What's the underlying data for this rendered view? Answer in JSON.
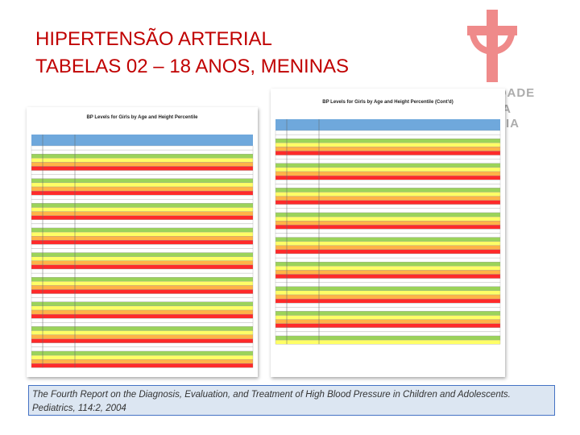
{
  "header": {
    "title_line1": "HIPERTENSÃO ARTERIAL",
    "title_line2": "TABELAS 02 – 18 ANOS, MENINAS"
  },
  "logo": {
    "lines": [
      "SOCIEDADE",
      "IA",
      "TRIA"
    ]
  },
  "sheets": [
    {
      "title": "BP Levels for Girls by Age and Height Percentile"
    },
    {
      "title": "BP Levels for Girls by Age and Height Percentile (Cont'd)"
    }
  ],
  "citation": "The Fourth Report on the Diagnosis, Evaluation, and Treatment of High Blood Pressure in Children and  Adolescents. Pediatrics, 114:2, 2004"
}
